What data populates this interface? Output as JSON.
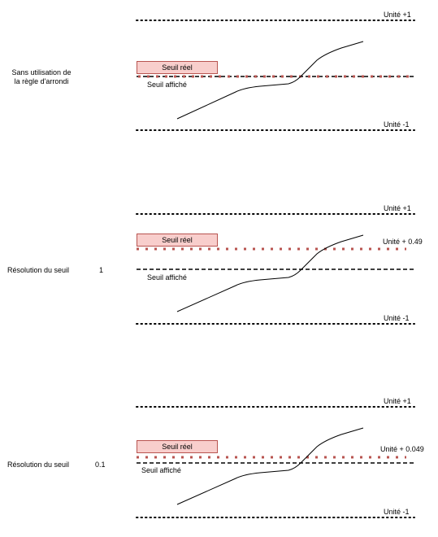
{
  "colors": {
    "threshold_real": "#b85450",
    "box_fill": "#f8cecc",
    "line": "#000000"
  },
  "panels": [
    {
      "description": "Sans utilisation de la règle d'arrondi",
      "description_lines": [
        "Sans utilisation de",
        "la règle d'arrondi"
      ],
      "resolution_value": "",
      "unit_plus_label": "Unité +1",
      "unit_minus_label": "Unité -1",
      "real_threshold_label": "Seuil réel",
      "displayed_threshold_label": "Seuil affiché",
      "offset_label": ""
    },
    {
      "description": "Résolution du seuil",
      "description_lines": [
        "Résolution du seuil"
      ],
      "resolution_value": "1",
      "unit_plus_label": "Unité +1",
      "unit_minus_label": "Unité -1",
      "real_threshold_label": "Seuil réel",
      "displayed_threshold_label": "Seuil affiché",
      "offset_label": "Unité + 0.49"
    },
    {
      "description": "Résolution du seuil",
      "description_lines": [
        "Résolution du seuil"
      ],
      "resolution_value": "0.1",
      "unit_plus_label": "Unité +1",
      "unit_minus_label": "Unité -1",
      "real_threshold_label": "Seuil réel",
      "displayed_threshold_label": "Seuil affiché",
      "offset_label": "Unité + 0.049"
    }
  ]
}
